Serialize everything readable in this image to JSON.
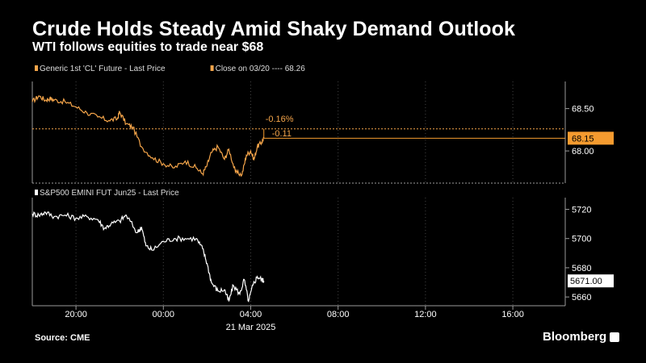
{
  "header": {
    "title": "Crude Holds Steady Amid Shaky Demand Outlook",
    "subtitle": "WTI follows equities to trade near $68"
  },
  "footer": {
    "source": "Source: CME",
    "brand": "Bloomberg"
  },
  "colors": {
    "background": "#000000",
    "oil": "#f5a54a",
    "oil_label_bg": "#f59b2f",
    "spx": "#ffffff",
    "axis": "#9a9a9a"
  },
  "chart_data": [
    {
      "type": "line",
      "legend": [
        {
          "text": "Generic 1st 'CL' Future - Last Price",
          "color": "#f5a54a"
        },
        {
          "text": "Close on 03/20 ---- 68.26",
          "color": "#f5a54a"
        }
      ],
      "y_ticks": [
        "68.50",
        "68.00"
      ],
      "y_tick_values": [
        68.5,
        68.0
      ],
      "ylim": [
        67.62,
        68.82
      ],
      "last_value_label": "68.15",
      "last_value": 68.15,
      "reference_line": {
        "label": "Close on 03/20",
        "value": 68.26
      },
      "annotations": [
        "-0.16%",
        "-0.11"
      ],
      "x": [
        0,
        0.3,
        0.6,
        0.8,
        1.0,
        1.5,
        2.0,
        2.5,
        3.0,
        3.5,
        3.9,
        4.0,
        4.3,
        4.6,
        5.0,
        5.5,
        6.0,
        6.5,
        7.0,
        7.5,
        7.8,
        8.0,
        8.2,
        8.5,
        8.8,
        9.0,
        9.3,
        9.6,
        9.8,
        10.0,
        10.15,
        10.3,
        10.5,
        10.6
      ],
      "values": [
        68.58,
        68.65,
        68.6,
        68.62,
        68.6,
        68.58,
        68.52,
        68.45,
        68.4,
        68.36,
        68.38,
        68.46,
        68.32,
        68.28,
        68.05,
        67.92,
        67.85,
        67.8,
        67.88,
        67.8,
        67.73,
        67.83,
        67.98,
        68.05,
        67.9,
        68.02,
        67.75,
        67.72,
        67.95,
        68.0,
        67.9,
        68.05,
        68.1,
        68.15
      ],
      "series_name": "Generic 1st 'CL' Future - Last Price"
    },
    {
      "type": "line",
      "legend": [
        {
          "text": "S&P500 EMINI FUT Jun25 - Last Price",
          "color": "#ffffff"
        }
      ],
      "y_ticks": [
        "5720",
        "5700",
        "5680",
        "5660"
      ],
      "y_tick_values": [
        5720,
        5700,
        5680,
        5660
      ],
      "ylim": [
        5654,
        5728
      ],
      "last_value_label": "5671.00",
      "last_value": 5671.0,
      "x": [
        0,
        0.3,
        0.6,
        1.0,
        1.5,
        2.0,
        2.5,
        3.0,
        3.3,
        3.6,
        4.0,
        4.3,
        4.8,
        5.0,
        5.2,
        5.5,
        6.0,
        6.5,
        7.0,
        7.5,
        7.8,
        8.0,
        8.2,
        8.5,
        8.8,
        9.0,
        9.2,
        9.5,
        9.7,
        9.9,
        10.1,
        10.3,
        10.5,
        10.6
      ],
      "values": [
        5717,
        5716,
        5718,
        5715,
        5716,
        5714,
        5715,
        5713,
        5707,
        5710,
        5712,
        5716,
        5704,
        5708,
        5695,
        5692,
        5698,
        5700,
        5700,
        5700,
        5693,
        5683,
        5670,
        5664,
        5665,
        5657,
        5668,
        5662,
        5672,
        5657,
        5668,
        5674,
        5672,
        5671
      ],
      "series_name": "S&P500 EMINI FUT Jun25 - Last Price"
    }
  ],
  "x_axis": {
    "tick_labels": [
      "20:00",
      "00:00",
      "04:00",
      "08:00",
      "12:00",
      "16:00"
    ],
    "tick_hours": [
      2,
      6,
      10,
      14,
      18,
      22
    ],
    "date_label": "21 Mar 2025",
    "range_hours": [
      0,
      24.4
    ]
  }
}
